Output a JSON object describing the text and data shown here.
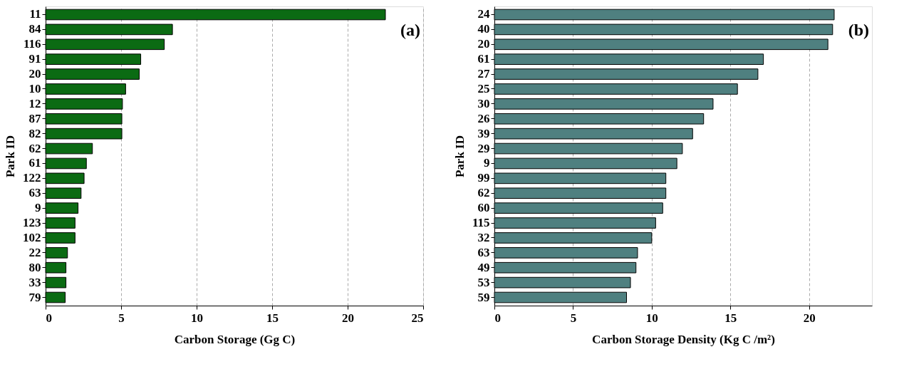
{
  "chart_data": [
    {
      "type": "bar",
      "orientation": "horizontal",
      "xlabel": "Carbon Storage (Gg C)",
      "ylabel": "Park ID",
      "annotations": [
        "(a)"
      ],
      "categories": [
        "11",
        "84",
        "116",
        "91",
        "20",
        "10",
        "12",
        "87",
        "82",
        "62",
        "61",
        "122",
        "63",
        "9",
        "123",
        "102",
        "22",
        "80",
        "33",
        "79"
      ],
      "values": [
        22.5,
        8.4,
        7.86,
        6.3,
        6.2,
        5.3,
        5.09,
        5.05,
        5.05,
        3.1,
        2.7,
        2.55,
        2.35,
        2.15,
        1.95,
        1.95,
        1.45,
        1.35,
        1.35,
        1.3
      ],
      "color": "#0b6b13",
      "xlim": [
        0,
        25
      ],
      "xticks": [
        0,
        5,
        10,
        15,
        20,
        25
      ],
      "grid": "x"
    },
    {
      "type": "bar",
      "orientation": "horizontal",
      "xlabel": "Carbon Storage Density (Kg C /m²)",
      "ylabel": "Park ID",
      "annotations": [
        "(b)"
      ],
      "categories": [
        "24",
        "40",
        "20",
        "61",
        "27",
        "25",
        "30",
        "26",
        "39",
        "29",
        "9",
        "99",
        "62",
        "60",
        "115",
        "32",
        "63",
        "49",
        "53",
        "59"
      ],
      "values": [
        21.6,
        21.5,
        21.2,
        17.1,
        16.75,
        15.45,
        13.9,
        13.3,
        12.6,
        11.95,
        11.6,
        10.9,
        10.9,
        10.7,
        10.25,
        10.0,
        9.1,
        9.0,
        8.65,
        8.4
      ],
      "color": "#4f8080",
      "xlim": [
        0,
        24
      ],
      "xticks": [
        0,
        5,
        10,
        15,
        20
      ],
      "grid": "x"
    }
  ]
}
